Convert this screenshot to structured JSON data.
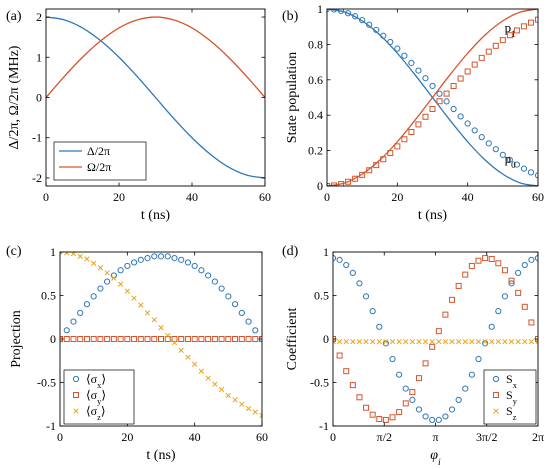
{
  "colors": {
    "blue": "#2f77b8",
    "orange": "#d6542b",
    "gold": "#e8a323"
  },
  "chart_data": [
    {
      "panel": "(a)",
      "type": "line",
      "xlabel": "t (ns)",
      "ylabel": "Δ/2π, Ω/2π (MHz)",
      "xlim": [
        0,
        60
      ],
      "ylim": [
        -2.2,
        2.2
      ],
      "xticks": [
        0,
        20,
        40,
        60
      ],
      "xticklabels": [
        "0",
        "20",
        "40",
        "60"
      ],
      "yticks": [
        -2,
        -1,
        0,
        1,
        2
      ],
      "yticklabels": [
        "-2",
        "-1",
        "0",
        "1",
        "2"
      ],
      "legend": "bottom-left",
      "grid": false,
      "series": [
        {
          "name": "Δ/2π",
          "color": "blue",
          "style": "line",
          "x": [
            0,
            5,
            10,
            15,
            20,
            25,
            30,
            35,
            40,
            45,
            50,
            55,
            60
          ],
          "y": [
            2.0,
            1.93,
            1.73,
            1.41,
            1.0,
            0.52,
            0.0,
            -0.52,
            -1.0,
            -1.41,
            -1.73,
            -1.93,
            -2.0
          ]
        },
        {
          "name": "Ω/2π",
          "color": "orange",
          "style": "line",
          "x": [
            0,
            5,
            10,
            15,
            20,
            25,
            30,
            35,
            40,
            45,
            50,
            55,
            60
          ],
          "y": [
            0.0,
            0.52,
            1.0,
            1.41,
            1.73,
            1.93,
            2.0,
            1.93,
            1.73,
            1.41,
            1.0,
            0.52,
            0.0
          ]
        }
      ]
    },
    {
      "panel": "(b)",
      "type": "line",
      "xlabel": "t (ns)",
      "ylabel": "State population",
      "xlim": [
        0,
        60
      ],
      "ylim": [
        0,
        1
      ],
      "xticks": [
        0,
        20,
        40,
        60
      ],
      "xticklabels": [
        "0",
        "20",
        "40",
        "60"
      ],
      "yticks": [
        0,
        0.2,
        0.4,
        0.6,
        0.8,
        1
      ],
      "yticklabels": [
        "0",
        "0.2",
        "0.4",
        "0.6",
        "0.8",
        "1"
      ],
      "grid": false,
      "annotations": [
        {
          "text": "p",
          "sub": "1",
          "x": 50.5,
          "y": 0.87
        },
        {
          "text": "p",
          "sub": "0",
          "x": 50.5,
          "y": 0.13
        }
      ],
      "series": [
        {
          "name": "",
          "color": "blue",
          "style": "line",
          "x": [
            0,
            5,
            10,
            15,
            20,
            25,
            30,
            35,
            40,
            45,
            50,
            55,
            60
          ],
          "y": [
            1.0,
            0.983,
            0.933,
            0.854,
            0.75,
            0.629,
            0.5,
            0.371,
            0.25,
            0.146,
            0.067,
            0.017,
            0.0
          ]
        },
        {
          "name": "",
          "color": "orange",
          "style": "line",
          "x": [
            0,
            5,
            10,
            15,
            20,
            25,
            30,
            35,
            40,
            45,
            50,
            55,
            60
          ],
          "y": [
            0.0,
            0.017,
            0.067,
            0.146,
            0.25,
            0.371,
            0.5,
            0.629,
            0.75,
            0.854,
            0.933,
            0.983,
            1.0
          ]
        },
        {
          "name": "",
          "color": "blue",
          "style": "circle",
          "x": [
            0,
            2,
            4,
            6,
            8,
            10,
            12,
            14,
            16,
            18,
            20,
            22,
            24,
            26,
            28,
            30,
            32,
            34,
            36,
            38,
            40,
            42,
            44,
            46,
            48,
            50,
            52,
            54,
            56,
            58,
            60
          ],
          "y": [
            1.0,
            0.997,
            0.989,
            0.976,
            0.959,
            0.937,
            0.911,
            0.882,
            0.849,
            0.814,
            0.776,
            0.736,
            0.695,
            0.652,
            0.609,
            0.565,
            0.521,
            0.478,
            0.435,
            0.393,
            0.353,
            0.314,
            0.276,
            0.241,
            0.208,
            0.176,
            0.148,
            0.121,
            0.098,
            0.077,
            0.06
          ]
        },
        {
          "name": "",
          "color": "orange",
          "style": "square",
          "x": [
            0,
            2,
            4,
            6,
            8,
            10,
            12,
            14,
            16,
            18,
            20,
            22,
            24,
            26,
            28,
            30,
            32,
            34,
            36,
            38,
            40,
            42,
            44,
            46,
            48,
            50,
            52,
            54,
            56,
            58,
            60
          ],
          "y": [
            0.0,
            0.003,
            0.011,
            0.024,
            0.041,
            0.063,
            0.089,
            0.118,
            0.151,
            0.186,
            0.224,
            0.264,
            0.305,
            0.348,
            0.391,
            0.435,
            0.479,
            0.522,
            0.565,
            0.607,
            0.647,
            0.686,
            0.724,
            0.759,
            0.792,
            0.824,
            0.852,
            0.879,
            0.902,
            0.923,
            0.94
          ]
        }
      ]
    },
    {
      "panel": "(c)",
      "type": "scatter",
      "xlabel": "t (ns)",
      "ylabel": "Projection",
      "xlim": [
        0,
        60
      ],
      "ylim": [
        -1,
        1
      ],
      "xticks": [
        0,
        20,
        40,
        60
      ],
      "xticklabels": [
        "0",
        "20",
        "40",
        "60"
      ],
      "yticks": [
        -1,
        -0.5,
        0,
        0.5,
        1
      ],
      "yticklabels": [
        "-1",
        "-0.5",
        "0",
        "0.5",
        "1"
      ],
      "legend": "bottom-left",
      "grid": false,
      "series": [
        {
          "name": "⟨σ",
          "sub": "x",
          "close": "⟩",
          "color": "blue",
          "style": "circle",
          "x": [
            0,
            2,
            4,
            6,
            8,
            10,
            12,
            14,
            16,
            18,
            20,
            22,
            24,
            26,
            28,
            30,
            32,
            34,
            36,
            38,
            40,
            42,
            44,
            46,
            48,
            50,
            52,
            54,
            56,
            58,
            60
          ],
          "y": [
            0.0,
            0.1,
            0.2,
            0.3,
            0.4,
            0.49,
            0.58,
            0.66,
            0.73,
            0.79,
            0.84,
            0.88,
            0.91,
            0.93,
            0.95,
            0.95,
            0.95,
            0.93,
            0.91,
            0.88,
            0.84,
            0.79,
            0.73,
            0.66,
            0.58,
            0.49,
            0.4,
            0.3,
            0.2,
            0.1,
            0.0
          ]
        },
        {
          "name": "⟨σ",
          "sub": "y",
          "close": "⟩",
          "color": "orange",
          "style": "square",
          "x": [
            0,
            2,
            4,
            6,
            8,
            10,
            12,
            14,
            16,
            18,
            20,
            22,
            24,
            26,
            28,
            30,
            32,
            34,
            36,
            38,
            40,
            42,
            44,
            46,
            48,
            50,
            52,
            54,
            56,
            58,
            60
          ],
          "y": [
            0,
            0,
            0,
            0,
            0,
            0,
            0,
            0,
            0,
            0,
            0,
            0,
            0,
            0,
            0,
            0,
            0,
            0,
            0,
            0,
            0,
            0,
            0,
            0,
            0,
            0,
            0,
            0,
            0,
            0,
            0
          ]
        },
        {
          "name": "⟨σ",
          "sub": "z",
          "close": "⟩",
          "color": "gold",
          "style": "cross",
          "x": [
            0,
            2,
            4,
            6,
            8,
            10,
            12,
            14,
            16,
            18,
            20,
            22,
            24,
            26,
            28,
            30,
            32,
            34,
            36,
            38,
            40,
            42,
            44,
            46,
            48,
            50,
            52,
            54,
            56,
            58,
            60
          ],
          "y": [
            1.0,
            0.99,
            0.98,
            0.95,
            0.92,
            0.87,
            0.82,
            0.76,
            0.7,
            0.63,
            0.55,
            0.47,
            0.39,
            0.3,
            0.22,
            0.13,
            0.04,
            -0.04,
            -0.13,
            -0.21,
            -0.29,
            -0.37,
            -0.45,
            -0.52,
            -0.58,
            -0.65,
            -0.7,
            -0.75,
            -0.8,
            -0.84,
            -0.88
          ]
        }
      ]
    },
    {
      "panel": "(d)",
      "type": "scatter",
      "xlabel": "φ",
      "xlabel_sub": "i",
      "ylabel": "Coefficient",
      "xlim": [
        0,
        6.2832
      ],
      "ylim": [
        -1,
        1
      ],
      "xticks": [
        0,
        1.5708,
        3.1416,
        4.7124,
        6.2832
      ],
      "xticklabels": [
        "0",
        "π/2",
        "π",
        "3π/2",
        "2π"
      ],
      "yticks": [
        -1,
        -0.5,
        0,
        0.5,
        1
      ],
      "yticklabels": [
        "-1",
        "-0.5",
        "0",
        "0.5",
        "1"
      ],
      "legend": "bottom-right",
      "grid": false,
      "series": [
        {
          "name": "S",
          "sub": "x",
          "color": "blue",
          "style": "circle",
          "x": [
            0,
            0.2027,
            0.4054,
            0.6081,
            0.8107,
            1.0134,
            1.2161,
            1.4188,
            1.6215,
            1.8242,
            2.0268,
            2.2295,
            2.4322,
            2.6349,
            2.8376,
            3.0403,
            3.2429,
            3.4456,
            3.6483,
            3.851,
            4.0537,
            4.2564,
            4.459,
            4.6617,
            4.8644,
            5.0671,
            5.2698,
            5.4725,
            5.6751,
            5.8778,
            6.0805,
            6.2832
          ],
          "y": [
            0.93,
            0.91,
            0.85,
            0.76,
            0.64,
            0.49,
            0.32,
            0.14,
            -0.05,
            -0.23,
            -0.41,
            -0.57,
            -0.7,
            -0.81,
            -0.89,
            -0.93,
            -0.93,
            -0.89,
            -0.81,
            -0.7,
            -0.57,
            -0.41,
            -0.23,
            -0.05,
            0.14,
            0.32,
            0.49,
            0.64,
            0.76,
            0.85,
            0.91,
            0.93
          ]
        },
        {
          "name": "S",
          "sub": "y",
          "color": "orange",
          "style": "square",
          "x": [
            0,
            0.2027,
            0.4054,
            0.6081,
            0.8107,
            1.0134,
            1.2161,
            1.4188,
            1.6215,
            1.8242,
            2.0268,
            2.2295,
            2.4322,
            2.6349,
            2.8376,
            3.0403,
            3.2429,
            3.4456,
            3.6483,
            3.851,
            4.0537,
            4.2564,
            4.459,
            4.6617,
            4.8644,
            5.0671,
            5.2698,
            5.4725,
            5.6751,
            5.8778,
            6.0805,
            6.2832
          ],
          "y": [
            0.0,
            -0.19,
            -0.37,
            -0.53,
            -0.67,
            -0.79,
            -0.87,
            -0.92,
            -0.93,
            -0.9,
            -0.84,
            -0.74,
            -0.61,
            -0.45,
            -0.28,
            -0.09,
            0.09,
            0.28,
            0.45,
            0.61,
            0.74,
            0.84,
            0.9,
            0.93,
            0.92,
            0.87,
            0.79,
            0.67,
            0.53,
            0.37,
            0.19,
            0.0
          ]
        },
        {
          "name": "S",
          "sub": "z",
          "color": "gold",
          "style": "cross",
          "x": [
            0,
            0.2027,
            0.4054,
            0.6081,
            0.8107,
            1.0134,
            1.2161,
            1.4188,
            1.6215,
            1.8242,
            2.0268,
            2.2295,
            2.4322,
            2.6349,
            2.8376,
            3.0403,
            3.2429,
            3.4456,
            3.6483,
            3.851,
            4.0537,
            4.2564,
            4.459,
            4.6617,
            4.8644,
            5.0671,
            5.2698,
            5.4725,
            5.6751,
            5.8778,
            6.0805,
            6.2832
          ],
          "y": [
            -0.03,
            -0.03,
            -0.03,
            -0.03,
            -0.03,
            -0.03,
            -0.03,
            -0.03,
            -0.03,
            -0.03,
            -0.03,
            -0.03,
            -0.03,
            -0.03,
            -0.03,
            -0.03,
            -0.03,
            -0.03,
            -0.03,
            -0.03,
            -0.03,
            -0.03,
            -0.03,
            -0.03,
            -0.03,
            -0.03,
            -0.03,
            -0.03,
            -0.03,
            -0.03,
            -0.03,
            -0.03
          ]
        }
      ]
    }
  ]
}
